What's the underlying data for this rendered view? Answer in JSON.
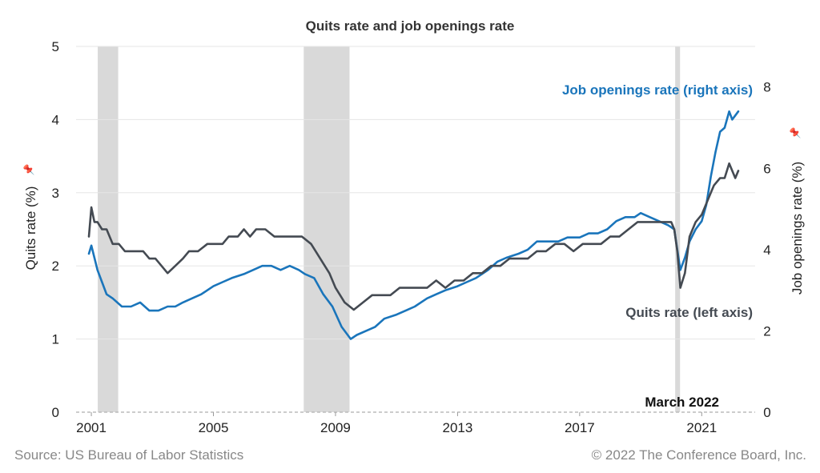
{
  "chart_data": {
    "type": "line",
    "title": "Quits rate and job openings rate",
    "xlabel": "",
    "ylabel_left": "Quits rate (%)",
    "ylabel_right": "Job openings rate (%)",
    "pin_glyph": "📌",
    "ylim_left": [
      0,
      5
    ],
    "ylim_right": [
      0,
      9
    ],
    "xlim": [
      2000.5,
      2022.75
    ],
    "x_ticks": [
      2001,
      2005,
      2009,
      2013,
      2017,
      2021
    ],
    "y_ticks_left": [
      0,
      1,
      2,
      3,
      4,
      5
    ],
    "y_ticks_right": [
      0,
      2,
      4,
      6,
      8
    ],
    "grid": "horizontal",
    "recessions": [
      [
        2001.21,
        2001.88
      ],
      [
        2007.96,
        2009.46
      ],
      [
        2020.13,
        2020.29
      ]
    ],
    "annotations": {
      "job_openings_label": "Job openings rate (right axis)",
      "quits_label": "Quits rate (left axis)",
      "date_label": "March 2022"
    },
    "series": [
      {
        "name": "Job openings rate (right axis)",
        "axis": "right",
        "color": "#1a75bb",
        "x": [
          2000.92,
          2001.0,
          2001.1,
          2001.2,
          2001.35,
          2001.5,
          2001.7,
          2002.0,
          2002.3,
          2002.6,
          2002.9,
          2003.2,
          2003.5,
          2003.75,
          2004.0,
          2004.3,
          2004.6,
          2005.0,
          2005.3,
          2005.6,
          2006.0,
          2006.3,
          2006.6,
          2006.9,
          2007.2,
          2007.5,
          2007.8,
          2008.0,
          2008.3,
          2008.6,
          2008.9,
          2009.2,
          2009.5,
          2009.7,
          2010.0,
          2010.3,
          2010.6,
          2011.0,
          2011.3,
          2011.6,
          2012.0,
          2012.3,
          2012.6,
          2013.0,
          2013.3,
          2013.6,
          2014.0,
          2014.3,
          2014.6,
          2015.0,
          2015.3,
          2015.6,
          2016.0,
          2016.3,
          2016.6,
          2017.0,
          2017.3,
          2017.6,
          2017.9,
          2018.2,
          2018.5,
          2018.8,
          2019.0,
          2019.3,
          2019.6,
          2019.9,
          2020.1,
          2020.2,
          2020.3,
          2020.45,
          2020.6,
          2020.8,
          2021.0,
          2021.15,
          2021.3,
          2021.45,
          2021.6,
          2021.75,
          2021.9,
          2022.0,
          2022.1,
          2022.2
        ],
        "values": [
          3.9,
          4.1,
          3.8,
          3.5,
          3.2,
          2.9,
          2.8,
          2.6,
          2.6,
          2.7,
          2.5,
          2.5,
          2.6,
          2.6,
          2.7,
          2.8,
          2.9,
          3.1,
          3.2,
          3.3,
          3.4,
          3.5,
          3.6,
          3.6,
          3.5,
          3.6,
          3.5,
          3.4,
          3.3,
          2.9,
          2.6,
          2.1,
          1.8,
          1.9,
          2.0,
          2.1,
          2.3,
          2.4,
          2.5,
          2.6,
          2.8,
          2.9,
          3.0,
          3.1,
          3.2,
          3.3,
          3.5,
          3.7,
          3.8,
          3.9,
          4.0,
          4.2,
          4.2,
          4.2,
          4.3,
          4.3,
          4.4,
          4.4,
          4.5,
          4.7,
          4.8,
          4.8,
          4.9,
          4.8,
          4.7,
          4.6,
          4.5,
          4.0,
          3.5,
          3.8,
          4.2,
          4.5,
          4.7,
          5.1,
          5.8,
          6.4,
          6.9,
          7.0,
          7.4,
          7.2,
          7.3,
          7.4
        ]
      },
      {
        "name": "Quits rate (left axis)",
        "axis": "left",
        "color": "#444a52",
        "x": [
          2000.92,
          2001.0,
          2001.1,
          2001.2,
          2001.35,
          2001.5,
          2001.7,
          2001.9,
          2002.1,
          2002.4,
          2002.7,
          2002.9,
          2003.1,
          2003.3,
          2003.5,
          2003.75,
          2004.0,
          2004.2,
          2004.5,
          2004.8,
          2005.0,
          2005.3,
          2005.5,
          2005.8,
          2006.0,
          2006.2,
          2006.4,
          2006.7,
          2007.0,
          2007.3,
          2007.6,
          2007.9,
          2008.2,
          2008.5,
          2008.8,
          2009.0,
          2009.3,
          2009.6,
          2009.9,
          2010.2,
          2010.5,
          2010.8,
          2011.1,
          2011.4,
          2011.7,
          2012.0,
          2012.3,
          2012.6,
          2012.9,
          2013.2,
          2013.5,
          2013.8,
          2014.1,
          2014.4,
          2014.7,
          2015.0,
          2015.3,
          2015.6,
          2015.9,
          2016.2,
          2016.5,
          2016.8,
          2017.1,
          2017.4,
          2017.7,
          2018.0,
          2018.3,
          2018.6,
          2018.9,
          2019.2,
          2019.5,
          2019.8,
          2020.0,
          2020.1,
          2020.2,
          2020.3,
          2020.45,
          2020.6,
          2020.8,
          2021.0,
          2021.2,
          2021.4,
          2021.6,
          2021.75,
          2021.9,
          2022.0,
          2022.1,
          2022.2
        ],
        "values": [
          2.4,
          2.8,
          2.6,
          2.6,
          2.5,
          2.5,
          2.3,
          2.3,
          2.2,
          2.2,
          2.2,
          2.1,
          2.1,
          2.0,
          1.9,
          2.0,
          2.1,
          2.2,
          2.2,
          2.3,
          2.3,
          2.3,
          2.4,
          2.4,
          2.5,
          2.4,
          2.5,
          2.5,
          2.4,
          2.4,
          2.4,
          2.4,
          2.3,
          2.1,
          1.9,
          1.7,
          1.5,
          1.4,
          1.5,
          1.6,
          1.6,
          1.6,
          1.7,
          1.7,
          1.7,
          1.7,
          1.8,
          1.7,
          1.8,
          1.8,
          1.9,
          1.9,
          2.0,
          2.0,
          2.1,
          2.1,
          2.1,
          2.2,
          2.2,
          2.3,
          2.3,
          2.2,
          2.3,
          2.3,
          2.3,
          2.4,
          2.4,
          2.5,
          2.6,
          2.6,
          2.6,
          2.6,
          2.6,
          2.5,
          2.2,
          1.7,
          1.9,
          2.4,
          2.6,
          2.7,
          2.9,
          3.1,
          3.2,
          3.2,
          3.4,
          3.3,
          3.2,
          3.3
        ]
      }
    ]
  },
  "footer": {
    "source": "Source: US Bureau of Labor Statistics",
    "copyright": "© 2022 The Conference Board, Inc."
  }
}
